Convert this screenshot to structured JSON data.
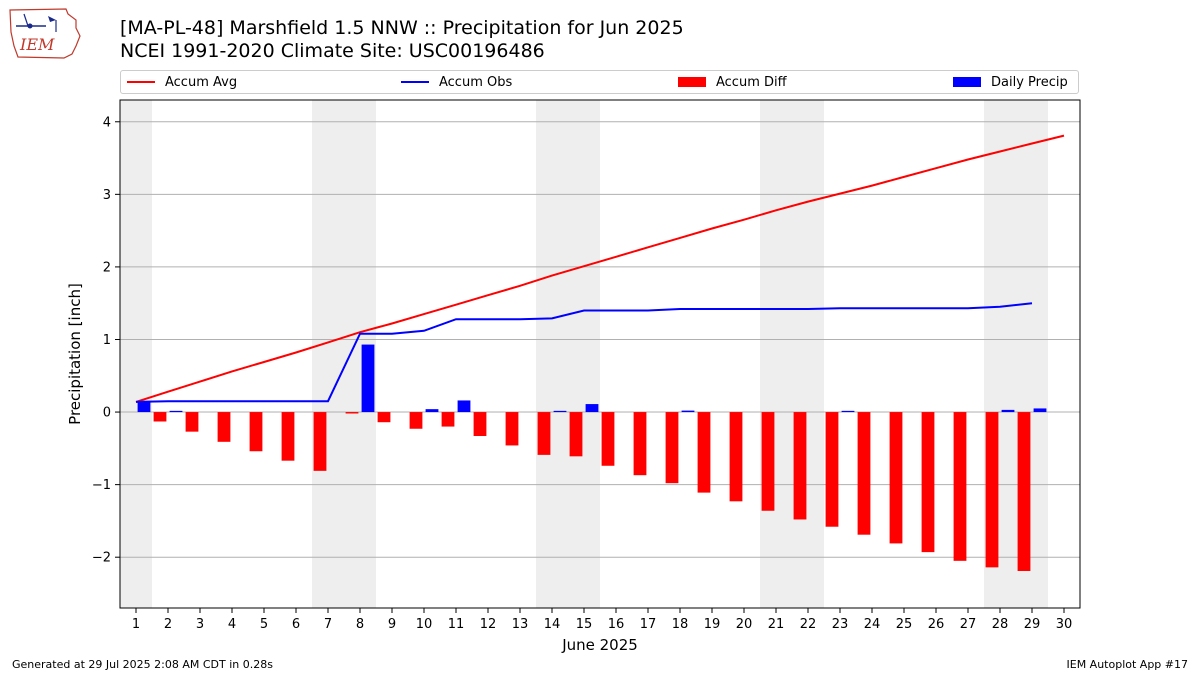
{
  "title_line1": "[MA-PL-48] Marshfield 1.5 NNW :: Precipitation for Jun 2025",
  "title_line2": "NCEI 1991-2020 Climate Site: USC00196486",
  "logo_text": "IEM",
  "footer_left": "Generated at 29 Jul 2025 2:08 AM CDT in 0.28s",
  "footer_right": "IEM Autoplot App #17",
  "colors": {
    "avg": "#ff0000",
    "obs": "#0000ff",
    "diff": "#ff0000",
    "daily": "#0000ff",
    "shade": "#eeeeee",
    "grid": "#b0b0b0"
  },
  "legend": [
    {
      "label": "Accum Avg",
      "kind": "line",
      "color": "#ff0000"
    },
    {
      "label": "Accum Obs",
      "kind": "line",
      "color": "#0000ff"
    },
    {
      "label": "Accum Diff",
      "kind": "rect",
      "color": "#ff0000"
    },
    {
      "label": "Daily Precip",
      "kind": "rect",
      "color": "#0000ff"
    }
  ],
  "chart_data": {
    "type": "bar",
    "xlabel": "June 2025",
    "ylabel": "Precipitation [inch]",
    "xlim": [
      0.5,
      30.5
    ],
    "ylim": [
      -2.7,
      4.3
    ],
    "yticks": [
      4,
      3,
      2,
      1,
      0,
      -1,
      -2
    ],
    "ytick_labels": [
      "4",
      "3",
      "2",
      "1",
      "0",
      "−1",
      "−2"
    ],
    "grid": "horizontal",
    "legend_position": "top",
    "weekend_shading": [
      [
        0.5,
        1.5
      ],
      [
        6.5,
        8.5
      ],
      [
        13.5,
        15.5
      ],
      [
        20.5,
        22.5
      ],
      [
        27.5,
        29.5
      ]
    ],
    "days": [
      1,
      2,
      3,
      4,
      5,
      6,
      7,
      8,
      9,
      10,
      11,
      12,
      13,
      14,
      15,
      16,
      17,
      18,
      19,
      20,
      21,
      22,
      23,
      24,
      25,
      26,
      27,
      28,
      29,
      30
    ],
    "series": [
      {
        "name": "Accum Avg",
        "type": "line",
        "x": [
          1,
          2,
          3,
          4,
          5,
          6,
          7,
          8,
          9,
          10,
          11,
          12,
          13,
          14,
          15,
          16,
          17,
          18,
          19,
          20,
          21,
          22,
          23,
          24,
          25,
          26,
          27,
          28,
          29,
          30
        ],
        "values": [
          0.14,
          0.28,
          0.42,
          0.56,
          0.69,
          0.82,
          0.96,
          1.1,
          1.22,
          1.35,
          1.48,
          1.61,
          1.74,
          1.88,
          2.01,
          2.14,
          2.27,
          2.4,
          2.53,
          2.65,
          2.78,
          2.9,
          3.01,
          3.12,
          3.24,
          3.36,
          3.48,
          3.59,
          3.7,
          3.81
        ]
      },
      {
        "name": "Accum Obs",
        "type": "line",
        "x": [
          1,
          2,
          3,
          4,
          5,
          6,
          7,
          8,
          9,
          10,
          11,
          12,
          13,
          14,
          15,
          16,
          17,
          18,
          19,
          20,
          21,
          22,
          23,
          24,
          25,
          26,
          27,
          28,
          29
        ],
        "values": [
          0.14,
          0.15,
          0.15,
          0.15,
          0.15,
          0.15,
          0.15,
          1.08,
          1.08,
          1.12,
          1.28,
          1.28,
          1.28,
          1.29,
          1.4,
          1.4,
          1.4,
          1.42,
          1.42,
          1.42,
          1.42,
          1.42,
          1.43,
          1.43,
          1.43,
          1.43,
          1.43,
          1.45,
          1.5
        ]
      },
      {
        "name": "Accum Diff",
        "type": "bar",
        "x": [
          1,
          2,
          3,
          4,
          5,
          6,
          7,
          8,
          9,
          10,
          11,
          12,
          13,
          14,
          15,
          16,
          17,
          18,
          19,
          20,
          21,
          22,
          23,
          24,
          25,
          26,
          27,
          28,
          29
        ],
        "values": [
          0.0,
          -0.13,
          -0.27,
          -0.41,
          -0.54,
          -0.67,
          -0.81,
          -0.02,
          -0.14,
          -0.23,
          -0.2,
          -0.33,
          -0.46,
          -0.59,
          -0.61,
          -0.74,
          -0.87,
          -0.98,
          -1.11,
          -1.23,
          -1.36,
          -1.48,
          -1.58,
          -1.69,
          -1.81,
          -1.93,
          -2.05,
          -2.14,
          -2.19
        ]
      },
      {
        "name": "Daily Precip",
        "type": "bar",
        "x": [
          1,
          2,
          3,
          4,
          5,
          6,
          7,
          8,
          9,
          10,
          11,
          12,
          13,
          14,
          15,
          16,
          17,
          18,
          19,
          20,
          21,
          22,
          23,
          24,
          25,
          26,
          27,
          28,
          29
        ],
        "values": [
          0.14,
          0.01,
          0,
          0,
          0,
          0,
          0,
          0.93,
          0,
          0.04,
          0.16,
          0,
          0,
          0.01,
          0.11,
          0,
          0,
          0.02,
          0,
          0,
          0,
          0,
          0.01,
          0,
          0,
          0,
          0,
          0.03,
          0.05
        ]
      }
    ]
  }
}
